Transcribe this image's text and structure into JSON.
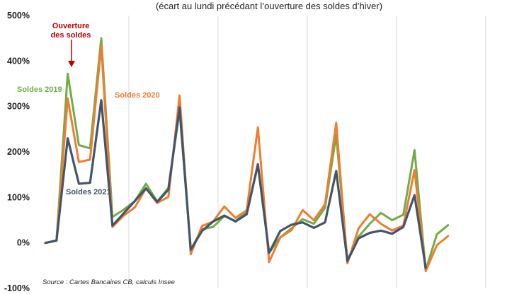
{
  "chart_data": {
    "type": "line",
    "subtitle": "(écart au lundi précédant l’ouverture des soldes d’hiver)",
    "ylim": [
      -100,
      500
    ],
    "yticks": [
      500,
      400,
      300,
      200,
      100,
      0,
      -100
    ],
    "ytick_labels": [
      "500%",
      "400%",
      "300%",
      "200%",
      "100%",
      "0%",
      "-100%"
    ],
    "grid": "vertical",
    "source": "Source : Cartes Bancaires CB, calculs Insee",
    "annotations": {
      "opening": "Ouverture\ndes soldes",
      "s2019": "Soldes 2019",
      "s2020": "Soldes 2020",
      "s2021": "Soldes 2021"
    },
    "colors": {
      "s2019": "#70ad47",
      "s2020": "#ed7d31",
      "s2021": "#44546a",
      "opening": "#c00000"
    },
    "x": [
      1,
      2,
      3,
      4,
      5,
      6,
      7,
      8,
      9,
      10,
      11,
      12,
      13,
      14,
      15,
      16,
      17,
      18,
      19,
      20,
      21,
      22,
      23,
      24,
      25,
      26,
      27,
      28,
      29,
      30,
      31,
      32,
      33,
      34,
      35,
      36,
      37,
      38,
      39,
      40,
      41,
      42,
      43
    ],
    "series": [
      {
        "name": "Soldes 2019",
        "values": [
          0,
          5,
          372,
          215,
          208,
          450,
          57,
          73,
          92,
          130,
          91,
          121,
          290,
          -15,
          30,
          35,
          59,
          48,
          68,
          170,
          -22,
          12,
          32,
          52,
          42,
          77,
          237,
          -38,
          14,
          42,
          66,
          50,
          62,
          204,
          -60,
          19,
          39,
          null,
          null,
          null,
          null,
          null,
          null
        ]
      },
      {
        "name": "Soldes 2020",
        "values": [
          0,
          5,
          318,
          178,
          183,
          434,
          35,
          60,
          78,
          120,
          88,
          101,
          324,
          -25,
          37,
          47,
          80,
          55,
          72,
          254,
          -42,
          12,
          28,
          72,
          50,
          85,
          264,
          -45,
          32,
          63,
          42,
          27,
          38,
          160,
          -62,
          -5,
          15,
          null,
          null,
          null,
          null,
          null,
          null
        ]
      },
      {
        "name": "Soldes 2021",
        "values": [
          0,
          5,
          230,
          130,
          132,
          314,
          38,
          65,
          92,
          120,
          90,
          117,
          298,
          -15,
          26,
          47,
          60,
          47,
          63,
          173,
          -22,
          26,
          40,
          45,
          33,
          45,
          158,
          -40,
          10,
          22,
          27,
          20,
          35,
          105,
          -55,
          null,
          null,
          null,
          null,
          null,
          null,
          null,
          null
        ]
      }
    ]
  }
}
